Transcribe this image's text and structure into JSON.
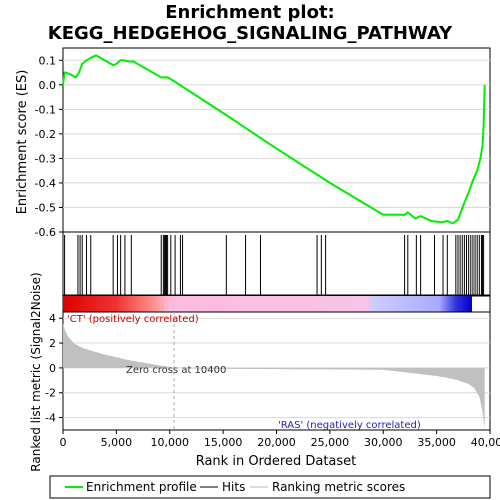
{
  "chart_data": {
    "type": "line",
    "title_line1": "Enrichment plot:",
    "title_line2": "KEGG_HEDGEHOG_SIGNALING_PATHWAY",
    "ylabel_top": "Enrichment score (ES)",
    "ylabel_bottom": "Ranked list metric (Signal2Noise)",
    "xlabel": "Rank in Ordered Dataset",
    "es_ylim": [
      -0.6,
      0.15
    ],
    "es_yticks": [
      "0.1",
      "0.0",
      "-0.1",
      "-0.2",
      "-0.3",
      "-0.4",
      "-0.5",
      "-0.6"
    ],
    "metric_ylim": [
      -5,
      4.5
    ],
    "metric_yticks": [
      "4",
      "2",
      "0",
      "-2",
      "-4"
    ],
    "xlim": [
      0,
      40000
    ],
    "xticks": [
      "0",
      "5,000",
      "10,000",
      "15,000",
      "20,000",
      "25,000",
      "30,000",
      "35,000",
      "40,000"
    ],
    "es_profile": {
      "x": [
        0,
        150,
        600,
        1200,
        1500,
        1800,
        2200,
        2600,
        3100,
        3700,
        4300,
        4700,
        5000,
        5400,
        5700,
        6200,
        6600,
        7200,
        8200,
        9200,
        9800,
        10400,
        15000,
        20000,
        25000,
        30000,
        32000,
        32300,
        33000,
        33500,
        34500,
        35500,
        36000,
        36500,
        37000,
        37300,
        37600,
        38000,
        38400,
        38800,
        39100,
        39300,
        39400,
        39450,
        39500
      ],
      "y": [
        0.0,
        0.05,
        0.045,
        0.03,
        0.05,
        0.085,
        0.1,
        0.11,
        0.12,
        0.105,
        0.09,
        0.08,
        0.085,
        0.1,
        0.1,
        0.095,
        0.095,
        0.08,
        0.055,
        0.03,
        0.03,
        0.015,
        -0.115,
        -0.26,
        -0.4,
        -0.53,
        -0.53,
        -0.52,
        -0.545,
        -0.535,
        -0.555,
        -0.56,
        -0.555,
        -0.565,
        -0.55,
        -0.515,
        -0.48,
        -0.44,
        -0.39,
        -0.35,
        -0.3,
        -0.25,
        -0.17,
        -0.09,
        0.0
      ]
    },
    "hits": [
      150,
      1400,
      1600,
      1800,
      2200,
      2600,
      4700,
      5100,
      5400,
      5800,
      6400,
      9200,
      9400,
      9500,
      9600,
      9700,
      9800,
      10100,
      10500,
      11000,
      11200,
      15300,
      17100,
      18500,
      23800,
      24200,
      24600,
      32000,
      32300,
      33100,
      33500,
      34800,
      35600,
      36000,
      36800,
      37000,
      37200,
      37400,
      37600,
      37800,
      38000,
      38200,
      38400,
      38600,
      38800,
      39000,
      39200,
      39300,
      39400
    ],
    "metric": {
      "x": [
        0,
        200,
        500,
        1000,
        1500,
        2000,
        3000,
        4000,
        5000,
        6000,
        7000,
        8000,
        9000,
        10000,
        10400,
        12000,
        15000,
        20000,
        25000,
        30000,
        31000,
        33000,
        35000,
        36000,
        37000,
        38000,
        38500,
        39000,
        39300,
        39500
      ],
      "y": [
        3.6,
        3.0,
        2.5,
        2.0,
        1.75,
        1.55,
        1.3,
        1.05,
        0.85,
        0.65,
        0.5,
        0.35,
        0.2,
        0.08,
        0.0,
        -0.05,
        -0.08,
        -0.1,
        -0.12,
        -0.15,
        -0.25,
        -0.45,
        -0.65,
        -0.8,
        -1.0,
        -1.3,
        -1.6,
        -2.3,
        -3.5,
        -4.9
      ]
    },
    "zero_cross_label": "Zero cross at 10400",
    "zero_cross_rank": 10400,
    "pos_label": "'CT' (positively correlated)",
    "neg_label": "'RAS' (negatively correlated)",
    "colors": {
      "es_line": "#00ee00",
      "pos_label": "#cc0000",
      "neg_label": "#2222bb",
      "metric_fill": "#c0c0c0",
      "grid": "#d8d8d8"
    },
    "legend": [
      {
        "label": "Enrichment profile",
        "style": "green-line"
      },
      {
        "label": "Hits",
        "style": "black-line"
      },
      {
        "label": "Ranking metric scores",
        "style": "gray-line"
      }
    ]
  }
}
